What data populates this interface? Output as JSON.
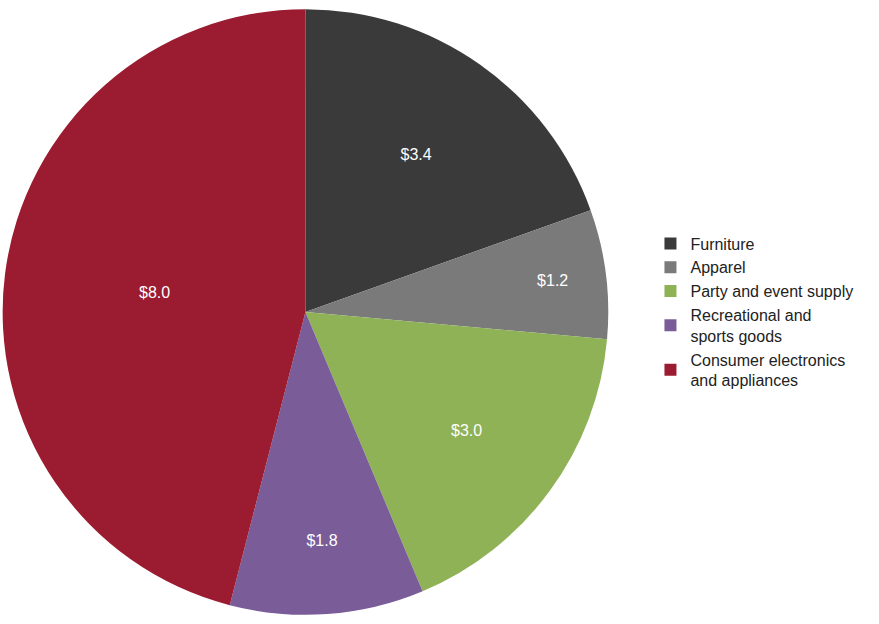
{
  "chart_data": {
    "type": "pie",
    "categories": [
      "Furniture",
      "Apparel",
      "Party and event supply",
      "Recreational and sports goods",
      "Consumer electronics and appliances"
    ],
    "values": [
      3.4,
      1.2,
      3.0,
      1.8,
      8.0
    ],
    "value_labels": [
      "$3.4",
      "$1.2",
      "$3.0",
      "$1.8",
      "$8.0"
    ],
    "colors": [
      "#3a3a3a",
      "#7a7a7a",
      "#8fb256",
      "#7a5c99",
      "#9b1b30"
    ],
    "data_labels": true,
    "legend": "right"
  }
}
